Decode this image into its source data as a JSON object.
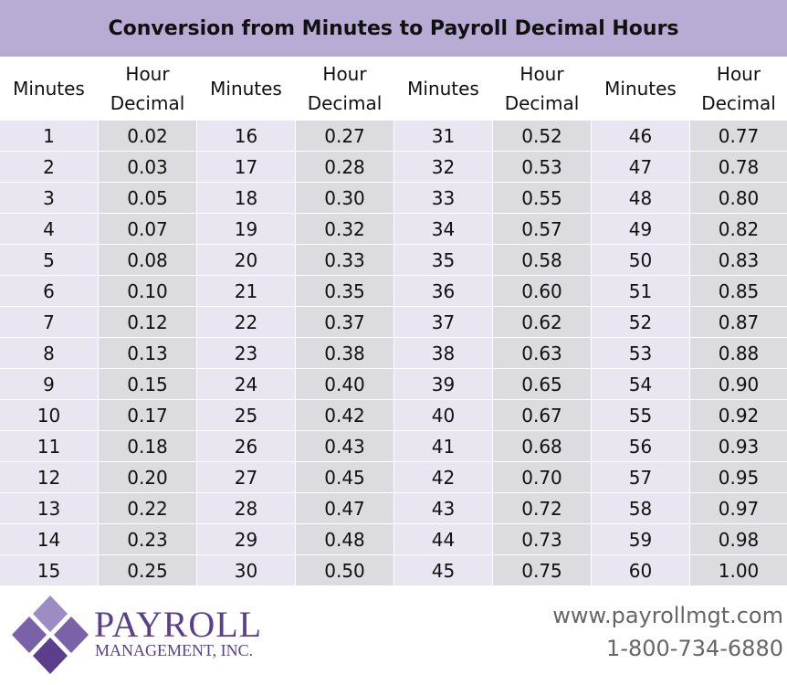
{
  "title": "Conversion from Minutes to Payroll Decimal Hours",
  "table": {
    "header": [
      "Minutes",
      "Hour Decimal",
      "Minutes",
      "Hour Decimal",
      "Minutes",
      "Hour Decimal",
      "Minutes",
      "Hour Decimal"
    ],
    "rows": [
      [
        "1",
        "0.02",
        "16",
        "0.27",
        "31",
        "0.52",
        "46",
        "0.77"
      ],
      [
        "2",
        "0.03",
        "17",
        "0.28",
        "32",
        "0.53",
        "47",
        "0.78"
      ],
      [
        "3",
        "0.05",
        "18",
        "0.30",
        "33",
        "0.55",
        "48",
        "0.80"
      ],
      [
        "4",
        "0.07",
        "19",
        "0.32",
        "34",
        "0.57",
        "49",
        "0.82"
      ],
      [
        "5",
        "0.08",
        "20",
        "0.33",
        "35",
        "0.58",
        "50",
        "0.83"
      ],
      [
        "6",
        "0.10",
        "21",
        "0.35",
        "36",
        "0.60",
        "51",
        "0.85"
      ],
      [
        "7",
        "0.12",
        "22",
        "0.37",
        "37",
        "0.62",
        "52",
        "0.87"
      ],
      [
        "8",
        "0.13",
        "23",
        "0.38",
        "38",
        "0.63",
        "53",
        "0.88"
      ],
      [
        "9",
        "0.15",
        "24",
        "0.40",
        "39",
        "0.65",
        "54",
        "0.90"
      ],
      [
        "10",
        "0.17",
        "25",
        "0.42",
        "40",
        "0.67",
        "55",
        "0.92"
      ],
      [
        "11",
        "0.18",
        "26",
        "0.43",
        "41",
        "0.68",
        "56",
        "0.93"
      ],
      [
        "12",
        "0.20",
        "27",
        "0.45",
        "42",
        "0.70",
        "57",
        "0.95"
      ],
      [
        "13",
        "0.22",
        "28",
        "0.47",
        "43",
        "0.72",
        "58",
        "0.97"
      ],
      [
        "14",
        "0.23",
        "29",
        "0.48",
        "44",
        "0.73",
        "59",
        "0.98"
      ],
      [
        "15",
        "0.25",
        "30",
        "0.50",
        "45",
        "0.75",
        "60",
        "1.00"
      ]
    ]
  },
  "footer": {
    "company": "PAYROLL",
    "company_sub": "MANAGEMENT, INC.",
    "website": "www.payrollmgt.com",
    "phone": "1-800-734-6880"
  }
}
